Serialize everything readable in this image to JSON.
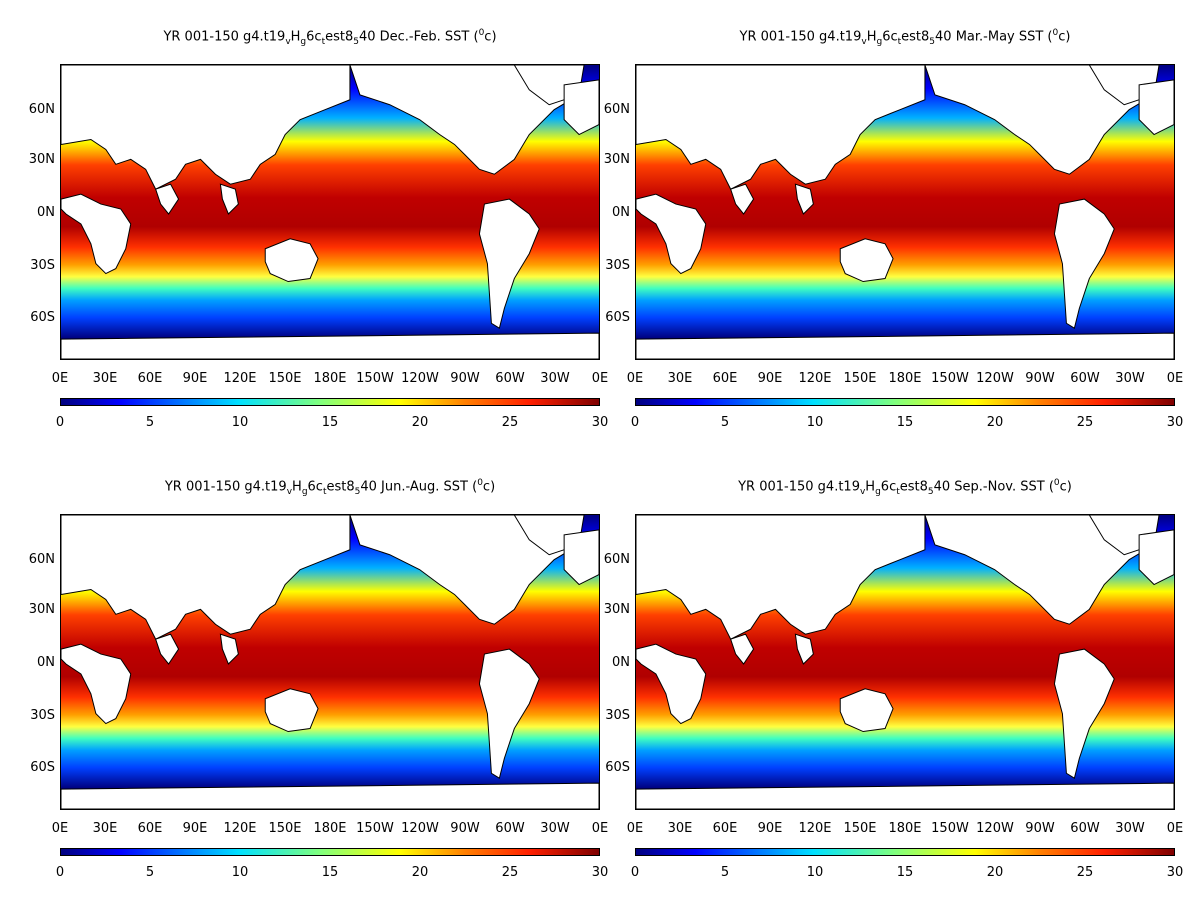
{
  "panels": [
    {
      "title_pre": "YR 001-150 g4.t19",
      "sub1": "v",
      "mid1": "H",
      "sub2": "g",
      "mid2": "6c",
      "sub3": "t",
      "mid3": "est8",
      "sub4": "5",
      "title_season": "40 Dec.-Feb. SST (",
      "sup": "0",
      "title_end": "c)"
    },
    {
      "title_pre": "YR 001-150 g4.t19",
      "sub1": "v",
      "mid1": "H",
      "sub2": "g",
      "mid2": "6c",
      "sub3": "t",
      "mid3": "est8",
      "sub4": "5",
      "title_season": "40 Mar.-May SST (",
      "sup": "0",
      "title_end": "c)"
    },
    {
      "title_pre": "YR 001-150 g4.t19",
      "sub1": "v",
      "mid1": "H",
      "sub2": "g",
      "mid2": "6c",
      "sub3": "t",
      "mid3": "est8",
      "sub4": "5",
      "title_season": "40 Jun.-Aug. SST (",
      "sup": "0",
      "title_end": "c)"
    },
    {
      "title_pre": "YR 001-150 g4.t19",
      "sub1": "v",
      "mid1": "H",
      "sub2": "g",
      "mid2": "6c",
      "sub3": "t",
      "mid3": "est8",
      "sub4": "5",
      "title_season": "40 Sep.-Nov. SST (",
      "sup": "0",
      "title_end": "c)"
    }
  ],
  "lat_labels": [
    "60N",
    "30N",
    "0N",
    "30S",
    "60S"
  ],
  "lon_labels": [
    "0E",
    "30E",
    "60E",
    "90E",
    "120E",
    "150E",
    "180E",
    "150W",
    "120W",
    "90W",
    "60W",
    "30W",
    "0E"
  ],
  "colorbar": {
    "ticks": [
      "0",
      "5",
      "10",
      "15",
      "20",
      "25",
      "30"
    ],
    "range": [
      0,
      30
    ]
  },
  "colors": {
    "cold": "#00007f",
    "warm": "#7f0000",
    "land": "#ffffff"
  }
}
